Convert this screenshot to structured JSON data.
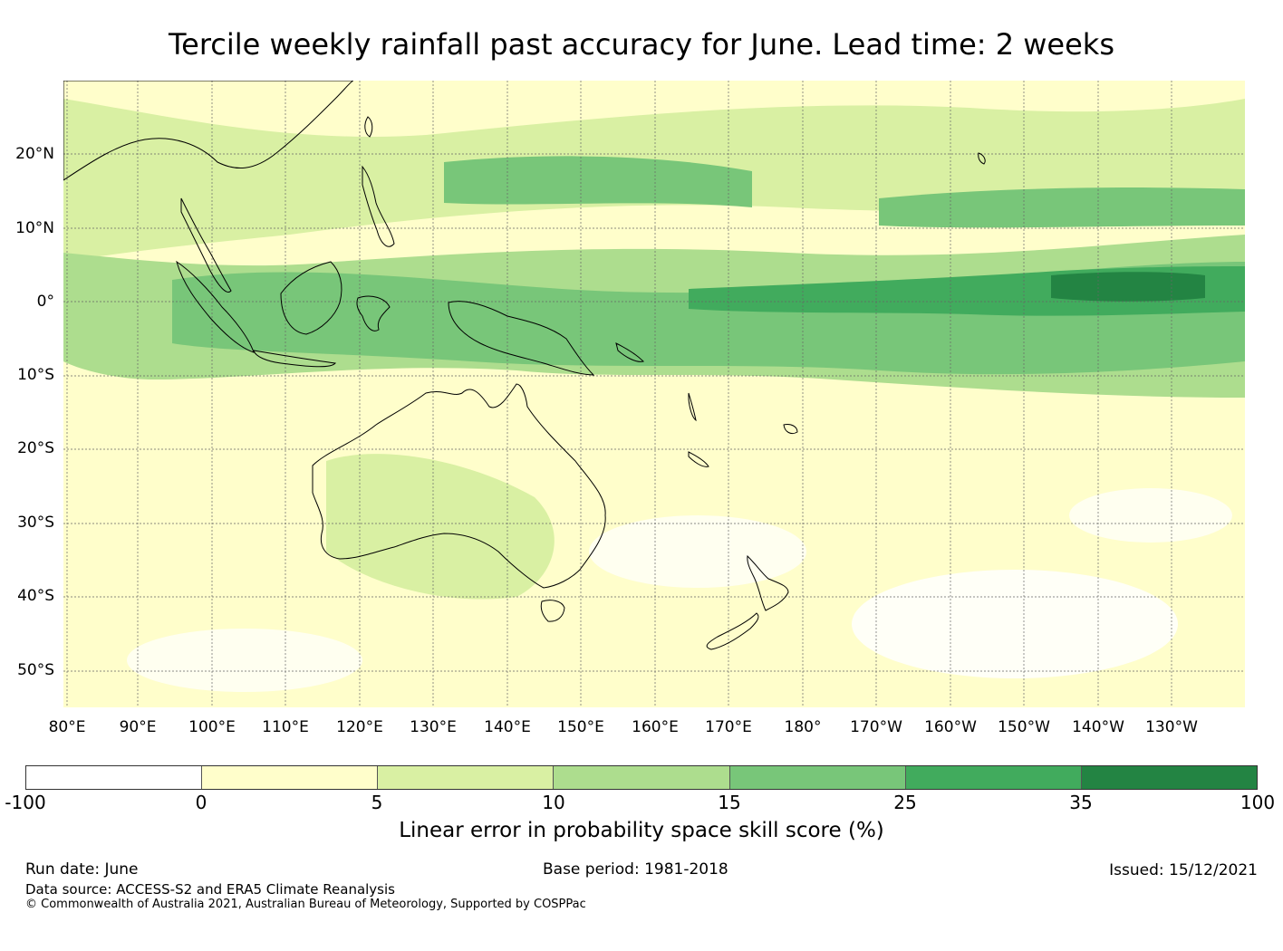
{
  "title": "Tercile weekly rainfall past accuracy for June. Lead time: 2 weeks",
  "map": {
    "lat_labels": [
      "20°N",
      "10°N",
      "0°",
      "10°S",
      "20°S",
      "30°S",
      "40°S",
      "50°S"
    ],
    "lon_labels": [
      "80°E",
      "90°E",
      "100°E",
      "110°E",
      "120°E",
      "130°E",
      "140°E",
      "150°E",
      "160°E",
      "170°E",
      "180°",
      "170°W",
      "160°W",
      "150°W",
      "140°W",
      "130°W"
    ],
    "extent": {
      "lon_min": 80,
      "lon_max": 240,
      "lat_min": -55,
      "lat_max": 30
    },
    "fill_color_dominant": "#fffecb"
  },
  "colorbar": {
    "ticks": [
      "-100",
      "0",
      "5",
      "10",
      "15",
      "25",
      "35",
      "100"
    ],
    "colors": [
      "#ffffff",
      "#fffecb",
      "#d9f0a3",
      "#addd8e",
      "#78c679",
      "#41ab5d",
      "#238443"
    ],
    "label": "Linear error in probability space skill score (%)"
  },
  "footer": {
    "run_date": "Run date: June",
    "base_period": "Base period: 1981-2018",
    "issued": "Issued: 15/12/2021",
    "data_source": "Data source: ACCESS-S2 and ERA5 Climate Reanalysis",
    "copyright": "© Commonwealth of Australia 2021, Australian Bureau of Meteorology, Supported by COSPPac"
  }
}
